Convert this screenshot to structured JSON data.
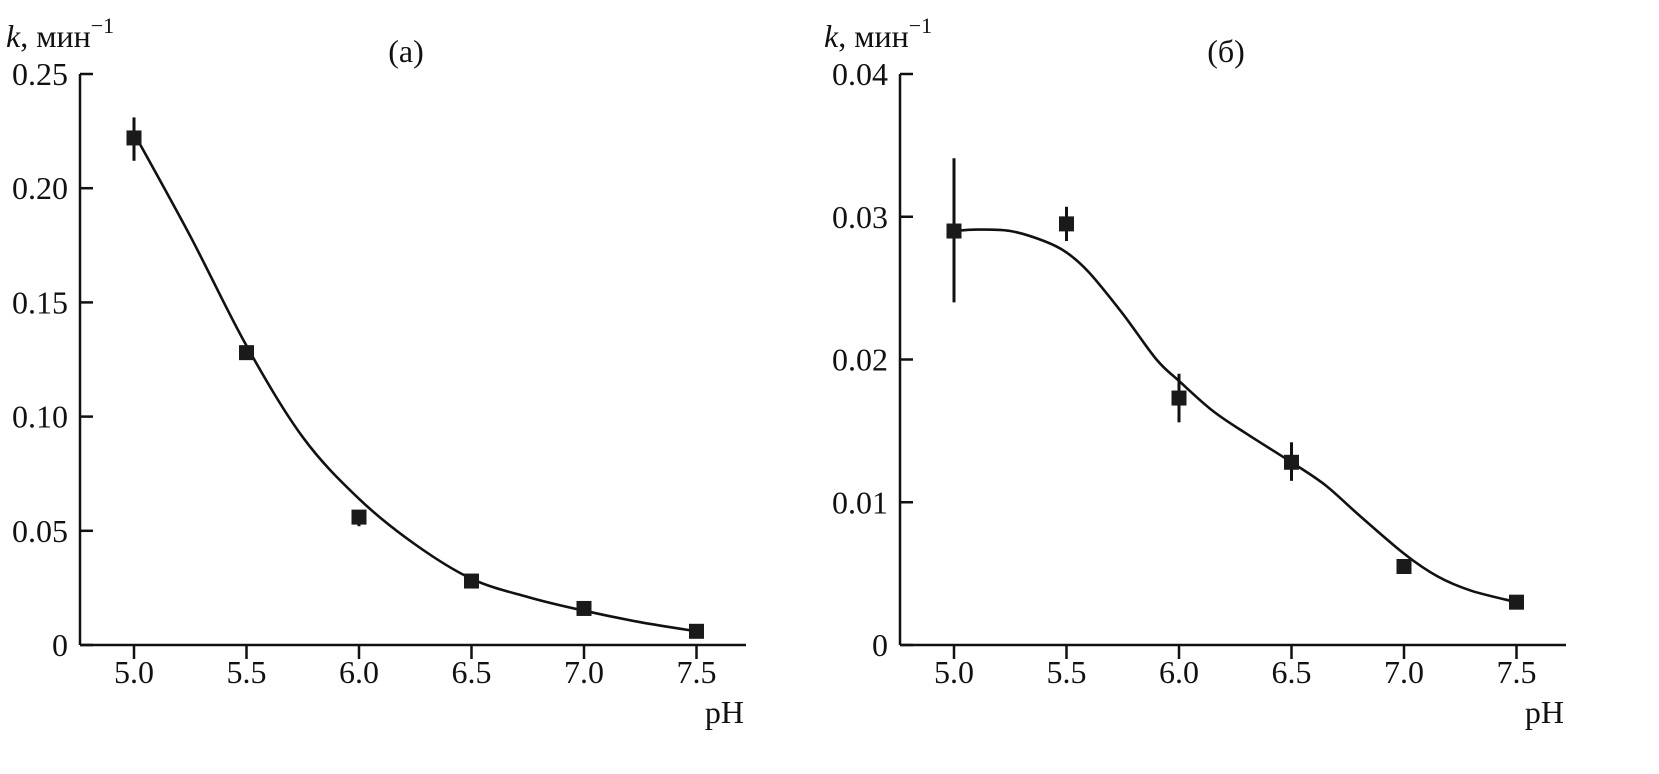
{
  "chart_data": [
    {
      "type": "scatter",
      "panel_label": "(а)",
      "ylabel_main": "k",
      "ylabel_unit": ", мин",
      "ylabel_exp": "−1",
      "xlabel": "pH",
      "xlim": [
        4.76,
        7.72
      ],
      "ylim": [
        0,
        0.25
      ],
      "x_ticks": [
        5.0,
        5.5,
        6.0,
        6.5,
        7.0,
        7.5
      ],
      "x_tick_labels": [
        "5.0",
        "5.5",
        "6.0",
        "6.5",
        "7.0",
        "7.5"
      ],
      "y_ticks": [
        0,
        0.05,
        0.1,
        0.15,
        0.2,
        0.25
      ],
      "y_tick_labels": [
        "0",
        "0.05",
        "0.10",
        "0.15",
        "0.20",
        "0.25"
      ],
      "grid": false,
      "series": [
        {
          "points": [
            {
              "x": 5.0,
              "y": 0.222,
              "err_low": 0.212,
              "err_high": 0.231
            },
            {
              "x": 5.5,
              "y": 0.128,
              "err_low": 0.125,
              "err_high": 0.131
            },
            {
              "x": 6.0,
              "y": 0.056,
              "err_low": 0.052,
              "err_high": 0.059
            },
            {
              "x": 6.5,
              "y": 0.028,
              "err_low": 0.025,
              "err_high": 0.031
            },
            {
              "x": 7.0,
              "y": 0.016,
              "err_low": 0.013,
              "err_high": 0.018
            },
            {
              "x": 7.5,
              "y": 0.006,
              "err_low": 0.004,
              "err_high": 0.008
            }
          ],
          "fit_curve": [
            [
              5.0,
              0.224
            ],
            [
              5.25,
              0.179
            ],
            [
              5.5,
              0.131
            ],
            [
              5.75,
              0.091
            ],
            [
              6.0,
              0.064
            ],
            [
              6.25,
              0.044
            ],
            [
              6.5,
              0.029
            ],
            [
              6.75,
              0.021
            ],
            [
              7.0,
              0.015
            ],
            [
              7.25,
              0.01
            ],
            [
              7.5,
              0.006
            ]
          ]
        }
      ]
    },
    {
      "type": "scatter",
      "panel_label": "(б)",
      "ylabel_main": "k",
      "ylabel_unit": ", мин",
      "ylabel_exp": "−1",
      "xlabel": "pH",
      "xlim": [
        4.76,
        7.72
      ],
      "ylim": [
        0,
        0.04
      ],
      "x_ticks": [
        5.0,
        5.5,
        6.0,
        6.5,
        7.0,
        7.5
      ],
      "x_tick_labels": [
        "5.0",
        "5.5",
        "6.0",
        "6.5",
        "7.0",
        "7.5"
      ],
      "y_ticks": [
        0,
        0.01,
        0.02,
        0.03,
        0.04
      ],
      "y_tick_labels": [
        "0",
        "0.01",
        "0.02",
        "0.03",
        "0.04"
      ],
      "grid": false,
      "series": [
        {
          "points": [
            {
              "x": 5.0,
              "y": 0.029,
              "err_low": 0.024,
              "err_high": 0.0341
            },
            {
              "x": 5.5,
              "y": 0.0295,
              "err_low": 0.0283,
              "err_high": 0.0307
            },
            {
              "x": 6.0,
              "y": 0.0173,
              "err_low": 0.0156,
              "err_high": 0.019
            },
            {
              "x": 6.5,
              "y": 0.0128,
              "err_low": 0.0115,
              "err_high": 0.0142
            },
            {
              "x": 7.0,
              "y": 0.0055,
              "err_low": 0.005,
              "err_high": 0.006
            },
            {
              "x": 7.5,
              "y": 0.003,
              "err_low": 0.0026,
              "err_high": 0.0034
            }
          ],
          "fit_curve": [
            [
              5.0,
              0.029
            ],
            [
              5.1,
              0.0291
            ],
            [
              5.25,
              0.029
            ],
            [
              5.4,
              0.0283
            ],
            [
              5.5,
              0.0275
            ],
            [
              5.6,
              0.0261
            ],
            [
              5.75,
              0.0232
            ],
            [
              5.9,
              0.02
            ],
            [
              6.0,
              0.0185
            ],
            [
              6.15,
              0.0164
            ],
            [
              6.3,
              0.0148
            ],
            [
              6.5,
              0.0128
            ],
            [
              6.65,
              0.0112
            ],
            [
              6.8,
              0.0091
            ],
            [
              7.0,
              0.0064
            ],
            [
              7.15,
              0.0048
            ],
            [
              7.3,
              0.0038
            ],
            [
              7.5,
              0.003
            ]
          ]
        }
      ]
    }
  ]
}
